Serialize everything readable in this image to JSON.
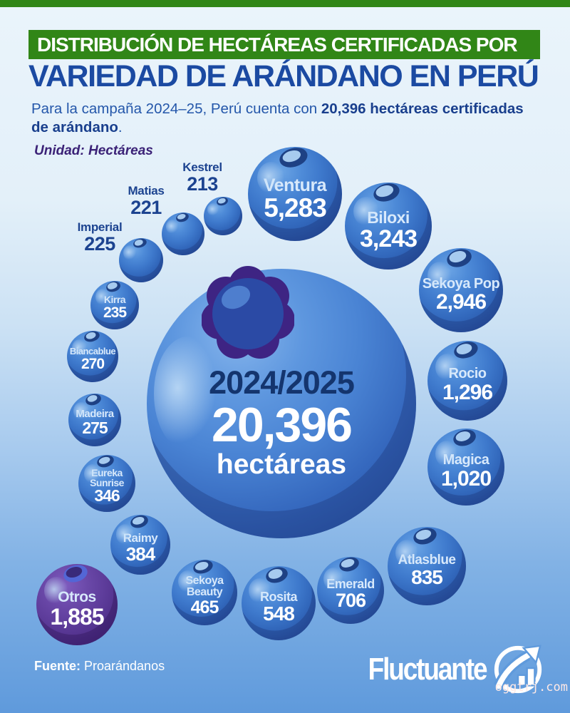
{
  "header": {
    "kicker": "DISTRIBUCIÓN DE HECTÁREAS CERTIFICADAS POR",
    "title": "VARIEDAD DE ARÁNDANO EN PERÚ",
    "intro_lead": "Para la campaña 2024–25, Perú cuenta con ",
    "intro_bold": "20,396 hectáreas certificadas de arándano",
    "intro_tail": ".",
    "unit_note": "Unidad: Hectáreas"
  },
  "center_bubble": {
    "season": "2024/2025",
    "total": "20,396",
    "unit": "hectáreas"
  },
  "varieties": [
    {
      "name": "Ventura",
      "value": "5,283"
    },
    {
      "name": "Biloxi",
      "value": "3,243"
    },
    {
      "name": "Sekoya Pop",
      "value": "2,946"
    },
    {
      "name": "Rocio",
      "value": "1,296"
    },
    {
      "name": "Magica",
      "value": "1,020"
    },
    {
      "name": "Atlasblue",
      "value": "835"
    },
    {
      "name": "Emerald",
      "value": "706"
    },
    {
      "name": "Rosita",
      "value": "548"
    },
    {
      "name": "Sekoya Beauty",
      "value": "465"
    },
    {
      "name": "Raimy",
      "value": "384"
    },
    {
      "name": "Otros",
      "value": "1,885"
    },
    {
      "name": "Eureka Sunrise",
      "value": "346"
    },
    {
      "name": "Madeira",
      "value": "275"
    },
    {
      "name": "Biancablue",
      "value": "270"
    },
    {
      "name": "Kirra",
      "value": "235"
    },
    {
      "name": "Imperial",
      "value": "225"
    },
    {
      "name": "Matias",
      "value": "221"
    },
    {
      "name": "Kestrel",
      "value": "213"
    }
  ],
  "footer": {
    "source_label": "Fuente:",
    "source_name": "Proarándanos",
    "brand": "Fluctuante"
  },
  "watermark": "oggtrj.com",
  "colors": {
    "header_green": "#318617",
    "title_blue": "#1b4aa2",
    "berry_blue": "#3e79cc",
    "berry_rim": "#27509e",
    "otros_purple": "#5d3c9a",
    "outside_label_navy": "#1c4390",
    "unit_note_purple": "#3b2277"
  },
  "chart_data": {
    "type": "bubble",
    "title": "Distribución de hectáreas certificadas por variedad de arándano en Perú",
    "subtitle": "Para la campaña 2024–25, Perú cuenta con 20,396 hectáreas certificadas de arándano.",
    "unit": "hectáreas",
    "season": "2024/2025",
    "total": 20396,
    "categories": [
      "Ventura",
      "Biloxi",
      "Sekoya Pop",
      "Rocio",
      "Magica",
      "Atlasblue",
      "Emerald",
      "Rosita",
      "Sekoya Beauty",
      "Raimy",
      "Otros",
      "Eureka Sunrise",
      "Madeira",
      "Biancablue",
      "Kirra",
      "Imperial",
      "Matias",
      "Kestrel"
    ],
    "values": [
      5283,
      3243,
      2946,
      1296,
      1020,
      835,
      706,
      548,
      465,
      384,
      1885,
      346,
      275,
      270,
      235,
      225,
      221,
      213
    ],
    "legend_position": "none",
    "source": "Proarándanos"
  }
}
